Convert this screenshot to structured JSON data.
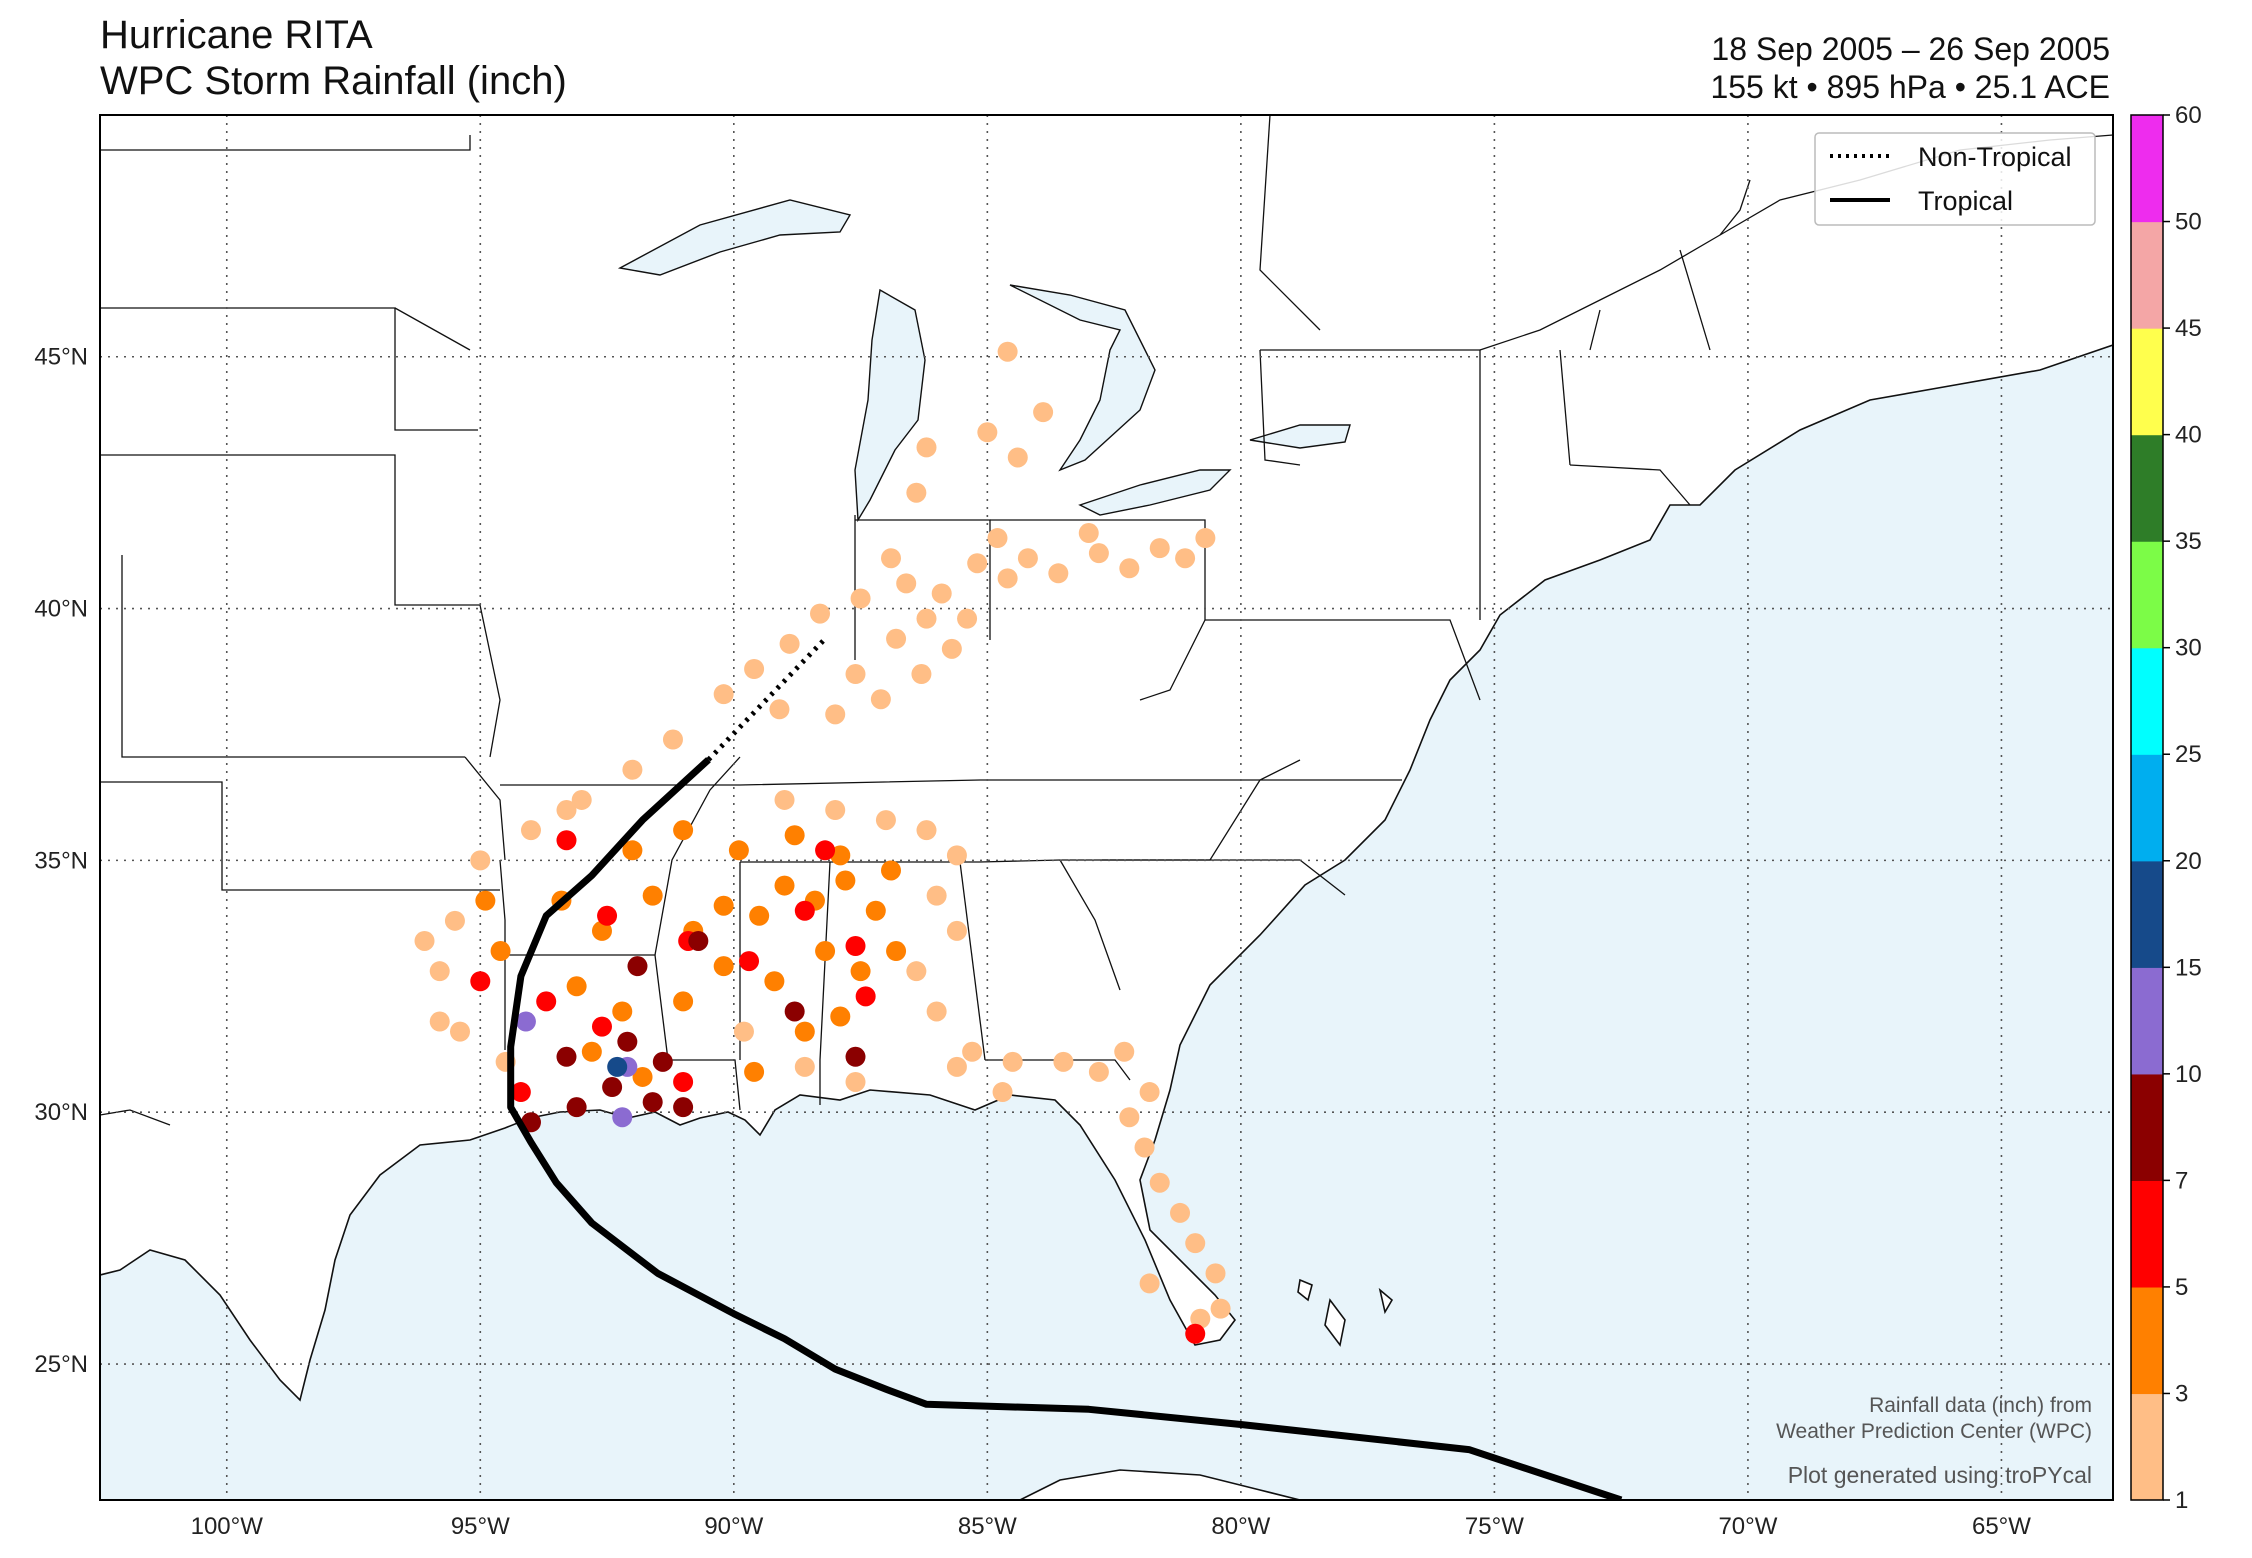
{
  "header": {
    "title_line1": "Hurricane RITA",
    "title_line2": "WPC Storm Rainfall (inch)",
    "date_range": "18 Sep 2005 – 26 Sep 2005",
    "stats": "155 kt • 895 hPa • 25.1 ACE"
  },
  "legend": {
    "non_tropical": "Non-Tropical",
    "tropical": "Tropical"
  },
  "credits": {
    "line1": "Rainfall data (inch) from",
    "line2": "Weather Prediction Center (WPC)",
    "line3": "Plot generated using troPYcal"
  },
  "axes": {
    "lon_labels": [
      "100°W",
      "95°W",
      "90°W",
      "85°W",
      "80°W",
      "75°W",
      "70°W",
      "65°W"
    ],
    "lon_values": [
      -100,
      -95,
      -90,
      -85,
      -80,
      -75,
      -70,
      -65
    ],
    "lat_labels": [
      "45°N",
      "40°N",
      "35°N",
      "30°N",
      "25°N"
    ],
    "lat_values": [
      45,
      40,
      35,
      30,
      25
    ],
    "lon_range": [
      -102.5,
      -62.8
    ],
    "lat_range": [
      22.3,
      49.8
    ]
  },
  "colorbar": {
    "ticks": [
      "1",
      "3",
      "5",
      "7",
      "10",
      "15",
      "20",
      "25",
      "30",
      "35",
      "40",
      "45",
      "50",
      "60"
    ],
    "colors": [
      "#ffbe86",
      "#ff8000",
      "#ff0000",
      "#8b0000",
      "#8b6bd1",
      "#164a8a",
      "#00aeef",
      "#00ffff",
      "#7cfc47",
      "#2e7d28",
      "#ffff4d",
      "#f4a6a6",
      "#ee2cee"
    ]
  },
  "colors": {
    "ocean": "#e8f4fa",
    "land": "#ffffff",
    "track": "#000000"
  },
  "chart_data": {
    "type": "scatter",
    "track": {
      "tropical": [
        [
          -72.5,
          22.3
        ],
        [
          -75.5,
          23.3
        ],
        [
          -80.0,
          23.8
        ],
        [
          -83.0,
          24.1
        ],
        [
          -86.2,
          24.2
        ],
        [
          -87.0,
          24.5
        ],
        [
          -88.0,
          24.9
        ],
        [
          -89.0,
          25.5
        ],
        [
          -90.0,
          26.0
        ],
        [
          -91.5,
          26.8
        ],
        [
          -92.8,
          27.8
        ],
        [
          -93.5,
          28.6
        ],
        [
          -94.0,
          29.4
        ],
        [
          -94.4,
          30.1
        ],
        [
          -94.4,
          31.3
        ],
        [
          -94.2,
          32.7
        ],
        [
          -93.7,
          33.9
        ],
        [
          -92.8,
          34.7
        ],
        [
          -91.8,
          35.8
        ],
        [
          -90.5,
          37.0
        ]
      ],
      "non_tropical": [
        [
          -90.5,
          37.0
        ],
        [
          -88.2,
          39.4
        ]
      ]
    },
    "rainfall_points": [
      {
        "lon": -87.6,
        "lat": 38.7,
        "cat": 1
      },
      {
        "lon": -86.8,
        "lat": 39.4,
        "cat": 1
      },
      {
        "lon": -86.2,
        "lat": 39.8,
        "cat": 1
      },
      {
        "lon": -87.5,
        "lat": 40.2,
        "cat": 1
      },
      {
        "lon": -86.6,
        "lat": 40.5,
        "cat": 1
      },
      {
        "lon": -85.9,
        "lat": 40.3,
        "cat": 1
      },
      {
        "lon": -85.4,
        "lat": 39.8,
        "cat": 1
      },
      {
        "lon": -86.9,
        "lat": 41.0,
        "cat": 1
      },
      {
        "lon": -85.2,
        "lat": 40.9,
        "cat": 1
      },
      {
        "lon": -84.6,
        "lat": 40.6,
        "cat": 1
      },
      {
        "lon": -84.2,
        "lat": 41.0,
        "cat": 1
      },
      {
        "lon": -83.6,
        "lat": 40.7,
        "cat": 1
      },
      {
        "lon": -82.8,
        "lat": 41.1,
        "cat": 1
      },
      {
        "lon": -82.2,
        "lat": 40.8,
        "cat": 1
      },
      {
        "lon": -81.6,
        "lat": 41.2,
        "cat": 1
      },
      {
        "lon": -81.1,
        "lat": 41.0,
        "cat": 1
      },
      {
        "lon": -80.7,
        "lat": 41.4,
        "cat": 1
      },
      {
        "lon": -83.0,
        "lat": 41.5,
        "cat": 1
      },
      {
        "lon": -84.8,
        "lat": 41.4,
        "cat": 1
      },
      {
        "lon": -88.3,
        "lat": 39.9,
        "cat": 1
      },
      {
        "lon": -88.9,
        "lat": 39.3,
        "cat": 1
      },
      {
        "lon": -89.6,
        "lat": 38.8,
        "cat": 1
      },
      {
        "lon": -90.2,
        "lat": 38.3,
        "cat": 1
      },
      {
        "lon": -89.1,
        "lat": 38.0,
        "cat": 1
      },
      {
        "lon": -88.0,
        "lat": 37.9,
        "cat": 1
      },
      {
        "lon": -87.1,
        "lat": 38.2,
        "cat": 1
      },
      {
        "lon": -86.3,
        "lat": 38.7,
        "cat": 1
      },
      {
        "lon": -85.7,
        "lat": 39.2,
        "cat": 1
      },
      {
        "lon": -91.2,
        "lat": 37.4,
        "cat": 1
      },
      {
        "lon": -92.0,
        "lat": 36.8,
        "cat": 1
      },
      {
        "lon": -93.0,
        "lat": 36.2,
        "cat": 1
      },
      {
        "lon": -94.0,
        "lat": 35.6,
        "cat": 1
      },
      {
        "lon": -95.0,
        "lat": 35.0,
        "cat": 1
      },
      {
        "lon": -95.5,
        "lat": 33.8,
        "cat": 1
      },
      {
        "lon": -95.8,
        "lat": 32.8,
        "cat": 1
      },
      {
        "lon": -95.4,
        "lat": 31.6,
        "cat": 1
      },
      {
        "lon": -94.5,
        "lat": 31.0,
        "cat": 1
      },
      {
        "lon": -89.0,
        "lat": 36.2,
        "cat": 1
      },
      {
        "lon": -88.0,
        "lat": 36.0,
        "cat": 1
      },
      {
        "lon": -87.0,
        "lat": 35.8,
        "cat": 1
      },
      {
        "lon": -86.2,
        "lat": 35.6,
        "cat": 1
      },
      {
        "lon": -85.6,
        "lat": 35.1,
        "cat": 1
      },
      {
        "lon": -86.0,
        "lat": 34.3,
        "cat": 1
      },
      {
        "lon": -85.6,
        "lat": 33.6,
        "cat": 1
      },
      {
        "lon": -86.4,
        "lat": 32.8,
        "cat": 1
      },
      {
        "lon": -86.0,
        "lat": 32.0,
        "cat": 1
      },
      {
        "lon": -85.3,
        "lat": 31.2,
        "cat": 1
      },
      {
        "lon": -84.5,
        "lat": 31.0,
        "cat": 1
      },
      {
        "lon": -83.5,
        "lat": 31.0,
        "cat": 1
      },
      {
        "lon": -82.8,
        "lat": 30.8,
        "cat": 1
      },
      {
        "lon": -82.3,
        "lat": 31.2,
        "cat": 1
      },
      {
        "lon": -81.8,
        "lat": 30.4,
        "cat": 1
      },
      {
        "lon": -82.2,
        "lat": 29.9,
        "cat": 1
      },
      {
        "lon": -81.9,
        "lat": 29.3,
        "cat": 1
      },
      {
        "lon": -81.6,
        "lat": 28.6,
        "cat": 1
      },
      {
        "lon": -81.2,
        "lat": 28.0,
        "cat": 1
      },
      {
        "lon": -80.9,
        "lat": 27.4,
        "cat": 1
      },
      {
        "lon": -80.5,
        "lat": 26.8,
        "cat": 1
      },
      {
        "lon": -80.4,
        "lat": 26.1,
        "cat": 1
      },
      {
        "lon": -80.8,
        "lat": 25.9,
        "cat": 1
      },
      {
        "lon": -81.8,
        "lat": 26.6,
        "cat": 1
      },
      {
        "lon": -84.7,
        "lat": 30.4,
        "cat": 1
      },
      {
        "lon": -85.6,
        "lat": 30.9,
        "cat": 1
      },
      {
        "lon": -87.6,
        "lat": 30.6,
        "cat": 1
      },
      {
        "lon": -88.6,
        "lat": 30.9,
        "cat": 1
      },
      {
        "lon": -89.8,
        "lat": 31.6,
        "cat": 1
      },
      {
        "lon": -85.0,
        "lat": 43.5,
        "cat": 1
      },
      {
        "lon": -84.4,
        "lat": 43.0,
        "cat": 1
      },
      {
        "lon": -86.4,
        "lat": 42.3,
        "cat": 1
      },
      {
        "lon": -86.2,
        "lat": 43.2,
        "cat": 1
      },
      {
        "lon": -84.6,
        "lat": 45.1,
        "cat": 1
      },
      {
        "lon": -83.9,
        "lat": 43.9,
        "cat": 1
      },
      {
        "lon": -96.1,
        "lat": 33.4,
        "cat": 1
      },
      {
        "lon": -95.8,
        "lat": 31.8,
        "cat": 1
      },
      {
        "lon": -93.3,
        "lat": 36.0,
        "cat": 1
      },
      {
        "lon": -93.4,
        "lat": 34.2,
        "cat": 2
      },
      {
        "lon": -92.6,
        "lat": 33.6,
        "cat": 2
      },
      {
        "lon": -91.6,
        "lat": 34.3,
        "cat": 2
      },
      {
        "lon": -90.8,
        "lat": 33.6,
        "cat": 2
      },
      {
        "lon": -90.2,
        "lat": 34.1,
        "cat": 2
      },
      {
        "lon": -89.5,
        "lat": 33.9,
        "cat": 2
      },
      {
        "lon": -89.0,
        "lat": 34.5,
        "cat": 2
      },
      {
        "lon": -88.4,
        "lat": 34.2,
        "cat": 2
      },
      {
        "lon": -87.8,
        "lat": 34.6,
        "cat": 2
      },
      {
        "lon": -87.2,
        "lat": 34.0,
        "cat": 2
      },
      {
        "lon": -86.8,
        "lat": 33.2,
        "cat": 2
      },
      {
        "lon": -87.5,
        "lat": 32.8,
        "cat": 2
      },
      {
        "lon": -88.2,
        "lat": 33.2,
        "cat": 2
      },
      {
        "lon": -89.2,
        "lat": 32.6,
        "cat": 2
      },
      {
        "lon": -90.2,
        "lat": 32.9,
        "cat": 2
      },
      {
        "lon": -91.0,
        "lat": 32.2,
        "cat": 2
      },
      {
        "lon": -92.2,
        "lat": 32.0,
        "cat": 2
      },
      {
        "lon": -93.1,
        "lat": 32.5,
        "cat": 2
      },
      {
        "lon": -94.6,
        "lat": 33.2,
        "cat": 2
      },
      {
        "lon": -94.9,
        "lat": 34.2,
        "cat": 2
      },
      {
        "lon": -92.0,
        "lat": 35.2,
        "cat": 2
      },
      {
        "lon": -91.0,
        "lat": 35.6,
        "cat": 2
      },
      {
        "lon": -89.9,
        "lat": 35.2,
        "cat": 2
      },
      {
        "lon": -88.8,
        "lat": 35.5,
        "cat": 2
      },
      {
        "lon": -87.9,
        "lat": 35.1,
        "cat": 2
      },
      {
        "lon": -86.9,
        "lat": 34.8,
        "cat": 2
      },
      {
        "lon": -88.6,
        "lat": 31.6,
        "cat": 2
      },
      {
        "lon": -87.9,
        "lat": 31.9,
        "cat": 2
      },
      {
        "lon": -89.6,
        "lat": 30.8,
        "cat": 2
      },
      {
        "lon": -91.8,
        "lat": 30.7,
        "cat": 2
      },
      {
        "lon": -92.8,
        "lat": 31.2,
        "cat": 2
      },
      {
        "lon": -93.3,
        "lat": 35.4,
        "cat": 3
      },
      {
        "lon": -92.5,
        "lat": 33.9,
        "cat": 3
      },
      {
        "lon": -90.9,
        "lat": 33.4,
        "cat": 3
      },
      {
        "lon": -89.7,
        "lat": 33.0,
        "cat": 3
      },
      {
        "lon": -88.6,
        "lat": 34.0,
        "cat": 3
      },
      {
        "lon": -88.2,
        "lat": 35.2,
        "cat": 3
      },
      {
        "lon": -87.6,
        "lat": 33.3,
        "cat": 3
      },
      {
        "lon": -87.4,
        "lat": 32.3,
        "cat": 3
      },
      {
        "lon": -93.7,
        "lat": 32.2,
        "cat": 3
      },
      {
        "lon": -94.2,
        "lat": 30.4,
        "cat": 3
      },
      {
        "lon": -91.0,
        "lat": 30.6,
        "cat": 3
      },
      {
        "lon": -92.6,
        "lat": 31.7,
        "cat": 3
      },
      {
        "lon": -80.9,
        "lat": 25.6,
        "cat": 3
      },
      {
        "lon": -95.0,
        "lat": 32.6,
        "cat": 3
      },
      {
        "lon": -93.3,
        "lat": 31.1,
        "cat": 4
      },
      {
        "lon": -92.4,
        "lat": 30.5,
        "cat": 4
      },
      {
        "lon": -91.6,
        "lat": 30.2,
        "cat": 4
      },
      {
        "lon": -91.0,
        "lat": 30.1,
        "cat": 4
      },
      {
        "lon": -91.4,
        "lat": 31.0,
        "cat": 4
      },
      {
        "lon": -92.1,
        "lat": 31.4,
        "cat": 4
      },
      {
        "lon": -91.9,
        "lat": 32.9,
        "cat": 4
      },
      {
        "lon": -90.7,
        "lat": 33.4,
        "cat": 4
      },
      {
        "lon": -88.8,
        "lat": 32.0,
        "cat": 4
      },
      {
        "lon": -87.6,
        "lat": 31.1,
        "cat": 4
      },
      {
        "lon": -94.0,
        "lat": 29.8,
        "cat": 4
      },
      {
        "lon": -93.1,
        "lat": 30.1,
        "cat": 4
      },
      {
        "lon": -92.1,
        "lat": 30.9,
        "cat": 5
      },
      {
        "lon": -94.1,
        "lat": 31.8,
        "cat": 5
      },
      {
        "lon": -92.2,
        "lat": 29.9,
        "cat": 5
      },
      {
        "lon": -92.3,
        "lat": 30.9,
        "cat": 6
      }
    ]
  }
}
